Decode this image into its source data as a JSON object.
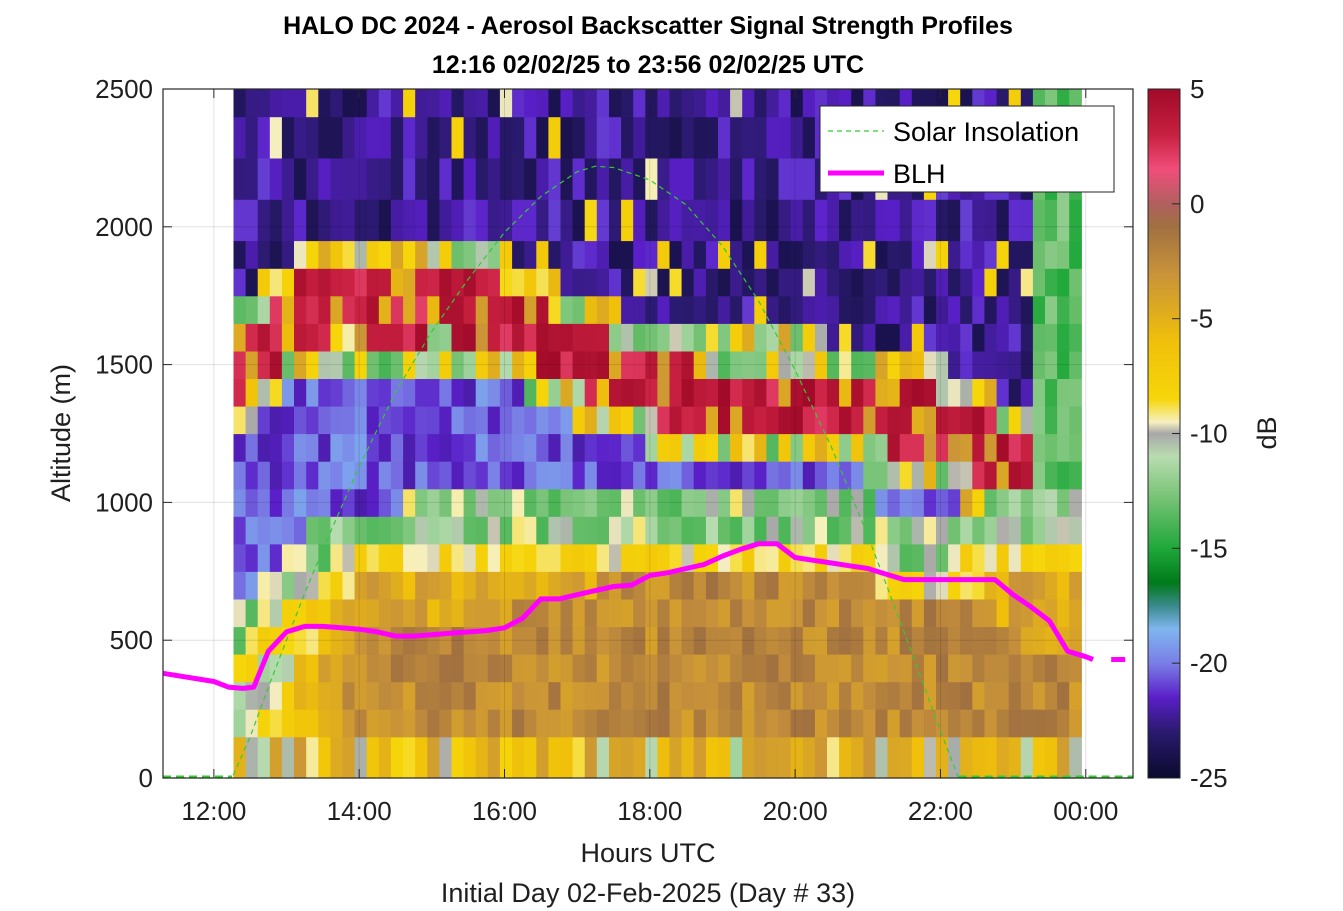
{
  "chart_data": {
    "type": "heatmap",
    "title": "HALO DC 2024 - Aerosol Backscatter Signal Strength Profiles",
    "subtitle": "12:16 02/02/25 to 23:56 02/02/25  UTC",
    "xlabel": "Hours UTC",
    "xlabel2": "Initial Day 02-Feb-2025 (Day # 33)",
    "ylabel": "Altitude (m)",
    "colorbar_label": "dB",
    "xlim": [
      11.3,
      24.65
    ],
    "ylim": [
      0,
      2500
    ],
    "clim": [
      -25,
      5
    ],
    "grid": true,
    "legend_position": "top-right",
    "x_ticks": [
      12,
      14,
      16,
      18,
      20,
      22,
      24
    ],
    "x_tick_labels": [
      "12:00",
      "14:00",
      "16:00",
      "18:00",
      "20:00",
      "22:00",
      "00:00"
    ],
    "y_ticks": [
      0,
      500,
      1000,
      1500,
      2000,
      2500
    ],
    "y_tick_labels": [
      "0",
      "500",
      "1000",
      "1500",
      "2000",
      "2500"
    ],
    "colorbar_ticks": [
      5,
      0,
      -5,
      -10,
      -15,
      -20,
      -25
    ],
    "colorbar_tick_labels": [
      "5",
      "0",
      "-5",
      "-10",
      "-15",
      "-20",
      "-25"
    ],
    "colormap": [
      [
        -25,
        "#0a0a2e"
      ],
      [
        -23,
        "#2a1a6e"
      ],
      [
        -21.5,
        "#5a1fc8"
      ],
      [
        -20,
        "#7a7ee6"
      ],
      [
        -18.5,
        "#7fb6ef"
      ],
      [
        -17.5,
        "#3a8a8a"
      ],
      [
        -16.5,
        "#007a1a"
      ],
      [
        -15,
        "#1fa83a"
      ],
      [
        -13,
        "#6fc06f"
      ],
      [
        -11,
        "#b8dcb0"
      ],
      [
        -10,
        "#a8a8a8"
      ],
      [
        -9.5,
        "#f6f0c0"
      ],
      [
        -8.5,
        "#f6d60a"
      ],
      [
        -6,
        "#f0c00a"
      ],
      [
        -3,
        "#c8923a"
      ],
      [
        -1,
        "#a07040"
      ],
      [
        0,
        "#b06060"
      ],
      [
        1.5,
        "#f04d7a"
      ],
      [
        3,
        "#c82040"
      ],
      [
        5,
        "#a00a28"
      ]
    ],
    "heatmap": {
      "x_start": 12.27,
      "x_step": 0.1667,
      "n_cols": 70,
      "bin_edges_m": [
        0,
        150,
        250,
        350,
        450,
        550,
        650,
        750,
        850,
        950,
        1050,
        1150,
        1250,
        1350,
        1450,
        1550,
        1650,
        1750,
        1850,
        1950,
        2100,
        2250,
        2400,
        2500
      ],
      "blh_m": [
        null,
        330,
        330,
        330,
        450,
        530,
        530,
        530,
        520,
        520,
        530,
        540,
        540,
        640,
        650,
        650,
        690,
        720,
        750,
        770,
        800,
        840,
        820,
        790,
        780,
        770,
        760,
        730,
        720,
        720,
        720,
        710,
        690,
        650,
        560,
        450,
        430,
        430
      ],
      "aerosol_top_m": [
        null,
        500,
        520,
        620,
        750,
        800,
        820,
        820,
        820,
        830,
        860,
        870,
        880,
        900,
        900,
        900,
        900,
        900,
        900,
        900,
        900,
        900,
        900,
        900,
        900,
        900,
        880,
        860,
        830,
        800,
        780,
        800,
        800,
        820,
        850,
        870,
        880,
        900
      ],
      "residual_layer_m": [
        null,
        1500,
        1550,
        1650,
        1700,
        1720,
        1720,
        1700,
        1700,
        1720,
        1720,
        1700,
        1680,
        1650,
        1600,
        1560,
        1520,
        1480,
        1450,
        1420,
        1400,
        1380,
        1380,
        1380,
        1380,
        1380,
        1370,
        1350,
        1340,
        1320,
        1300,
        1280,
        1250,
        1200,
        1150,
        1100,
        1050,
        1000
      ]
    },
    "series": [
      {
        "name": "Solar Insolation",
        "color": "#33cc33",
        "style": "dashed",
        "x": [
          11.3,
          12.25,
          12.5,
          12.75,
          13.0,
          13.25,
          13.5,
          14.0,
          14.5,
          15.0,
          15.5,
          16.0,
          16.5,
          17.0,
          17.25,
          17.5,
          18.0,
          18.5,
          19.0,
          19.5,
          20.0,
          20.5,
          21.0,
          21.5,
          22.0,
          22.25,
          22.5,
          23.0,
          24.65
        ],
        "y": [
          0,
          0,
          150,
          330,
          500,
          670,
          830,
          1130,
          1400,
          1620,
          1810,
          1980,
          2110,
          2200,
          2220,
          2215,
          2170,
          2080,
          1930,
          1730,
          1480,
          1200,
          880,
          530,
          170,
          0,
          0,
          0,
          0
        ]
      },
      {
        "name": "BLH",
        "color": "#ff00ff",
        "style": "solid",
        "x": [
          11.3,
          12.0,
          12.2,
          12.4,
          12.55,
          12.75,
          13.0,
          13.25,
          13.5,
          13.75,
          14.0,
          14.25,
          14.5,
          14.75,
          15.0,
          15.25,
          15.5,
          15.75,
          16.0,
          16.25,
          16.5,
          16.75,
          17.0,
          17.25,
          17.5,
          17.75,
          18.0,
          18.25,
          18.5,
          18.75,
          19.0,
          19.25,
          19.5,
          19.75,
          20.0,
          20.25,
          20.5,
          20.75,
          21.0,
          21.25,
          21.5,
          21.75,
          22.0,
          22.25,
          22.5,
          22.75,
          23.0,
          23.25,
          23.5,
          23.75,
          24.0,
          24.1
        ],
        "y": [
          380,
          350,
          330,
          325,
          330,
          460,
          530,
          550,
          550,
          545,
          540,
          530,
          515,
          515,
          520,
          525,
          530,
          535,
          545,
          580,
          650,
          650,
          665,
          680,
          695,
          700,
          735,
          745,
          760,
          775,
          805,
          830,
          850,
          850,
          800,
          790,
          780,
          770,
          760,
          740,
          720,
          720,
          720,
          720,
          720,
          720,
          665,
          620,
          570,
          460,
          440,
          430
        ]
      },
      {
        "name": "BLH",
        "color": "#ff00ff",
        "style": "dashed",
        "x": [
          24.35,
          24.62
        ],
        "y": [
          430,
          430
        ]
      }
    ]
  },
  "legend": {
    "items": [
      {
        "label": "Solar Insolation",
        "color": "#33cc33",
        "style": "dashed"
      },
      {
        "label": "BLH",
        "color": "#ff00ff",
        "style": "solid"
      }
    ]
  }
}
